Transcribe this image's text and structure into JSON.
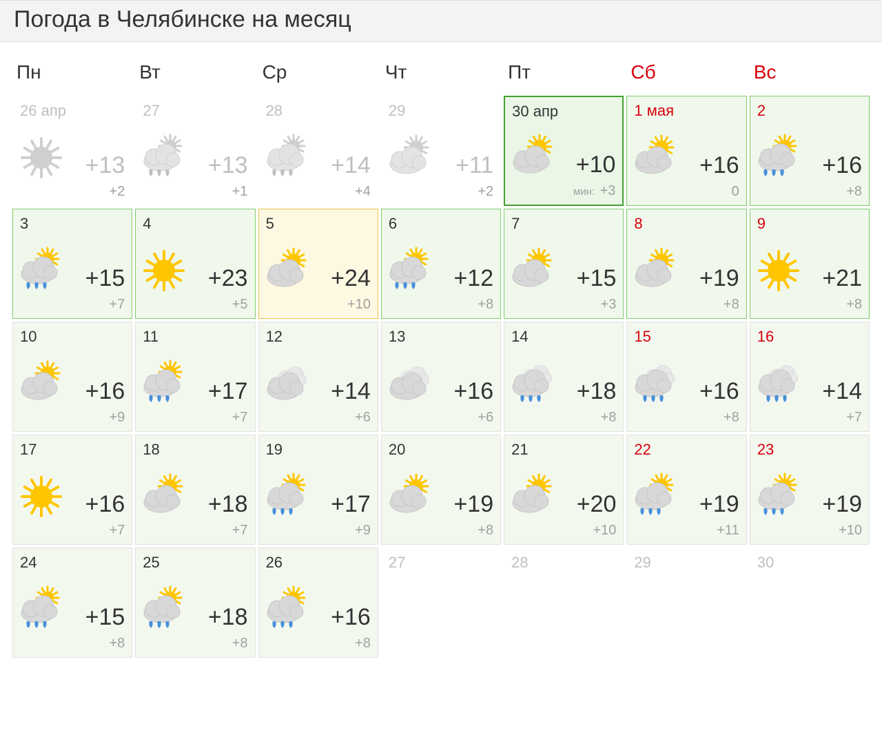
{
  "title": "Погода в Челябинске на месяц",
  "weekdays": [
    {
      "label": "Пн",
      "weekend": false
    },
    {
      "label": "Вт",
      "weekend": false
    },
    {
      "label": "Ср",
      "weekend": false
    },
    {
      "label": "Чт",
      "weekend": false
    },
    {
      "label": "Пт",
      "weekend": false
    },
    {
      "label": "Сб",
      "weekend": true
    },
    {
      "label": "Вс",
      "weekend": true
    }
  ],
  "min_label": "мин:",
  "colors": {
    "title_bg": "#f3f3f3",
    "border_past": "transparent",
    "text_past": "#bfbfbf",
    "text_normal": "#333333",
    "text_low": "#a0a0a0",
    "text_weekend": "#d8000c",
    "today_border": "#44a02e",
    "today_bg": "#eaf6e6",
    "near_border": "#7fcc6c",
    "near_bg": "#f0f8ec",
    "hot_border": "#e4c647",
    "hot_bg": "#fdf8e2",
    "future_border": "#e1e1e1",
    "future_bg": "#f3f8ef",
    "sun_fill": "#ffc600",
    "cloud_fill": "#d8d8d8",
    "cloud_stroke": "#c7c7c7",
    "rain_fill": "#4a90d9"
  },
  "days": [
    {
      "date": "26 апр",
      "weekend": false,
      "state": "past",
      "icon": "sun",
      "hi": "+13",
      "lo": "+2"
    },
    {
      "date": "27",
      "weekend": false,
      "state": "past",
      "icon": "sun-cloud-rain",
      "hi": "+13",
      "lo": "+1"
    },
    {
      "date": "28",
      "weekend": false,
      "state": "past",
      "icon": "sun-cloud-rain",
      "hi": "+14",
      "lo": "+4"
    },
    {
      "date": "29",
      "weekend": false,
      "state": "past",
      "icon": "sun-cloud",
      "hi": "+11",
      "lo": "+2"
    },
    {
      "date": "30 апр",
      "weekend": false,
      "state": "today",
      "icon": "sun-cloud",
      "hi": "+10",
      "lo": "+3",
      "lo_prefix": true
    },
    {
      "date": "1 мая",
      "weekend": true,
      "state": "near",
      "icon": "sun-cloud",
      "hi": "+16",
      "lo": "0"
    },
    {
      "date": "2",
      "weekend": true,
      "state": "near",
      "icon": "sun-cloud-rain",
      "hi": "+16",
      "lo": "+8"
    },
    {
      "date": "3",
      "weekend": false,
      "state": "near",
      "icon": "sun-cloud-rain",
      "hi": "+15",
      "lo": "+7"
    },
    {
      "date": "4",
      "weekend": false,
      "state": "near",
      "icon": "sun",
      "hi": "+23",
      "lo": "+5"
    },
    {
      "date": "5",
      "weekend": false,
      "state": "hot",
      "icon": "sun-cloud",
      "hi": "+24",
      "lo": "+10"
    },
    {
      "date": "6",
      "weekend": false,
      "state": "near",
      "icon": "sun-cloud-rain",
      "hi": "+12",
      "lo": "+8"
    },
    {
      "date": "7",
      "weekend": false,
      "state": "near",
      "icon": "sun-cloud",
      "hi": "+15",
      "lo": "+3"
    },
    {
      "date": "8",
      "weekend": true,
      "state": "near",
      "icon": "sun-cloud",
      "hi": "+19",
      "lo": "+8"
    },
    {
      "date": "9",
      "weekend": true,
      "state": "near",
      "icon": "sun",
      "hi": "+21",
      "lo": "+8"
    },
    {
      "date": "10",
      "weekend": false,
      "state": "future",
      "icon": "sun-cloud",
      "hi": "+16",
      "lo": "+9"
    },
    {
      "date": "11",
      "weekend": false,
      "state": "future",
      "icon": "sun-cloud-rain",
      "hi": "+17",
      "lo": "+7"
    },
    {
      "date": "12",
      "weekend": false,
      "state": "future",
      "icon": "cloudy",
      "hi": "+14",
      "lo": "+6"
    },
    {
      "date": "13",
      "weekend": false,
      "state": "future",
      "icon": "cloudy",
      "hi": "+16",
      "lo": "+6"
    },
    {
      "date": "14",
      "weekend": false,
      "state": "future",
      "icon": "cloud-rain",
      "hi": "+18",
      "lo": "+8"
    },
    {
      "date": "15",
      "weekend": true,
      "state": "future",
      "icon": "cloud-rain",
      "hi": "+16",
      "lo": "+8"
    },
    {
      "date": "16",
      "weekend": true,
      "state": "future",
      "icon": "cloud-rain",
      "hi": "+14",
      "lo": "+7"
    },
    {
      "date": "17",
      "weekend": false,
      "state": "future",
      "icon": "sun",
      "hi": "+16",
      "lo": "+7"
    },
    {
      "date": "18",
      "weekend": false,
      "state": "future",
      "icon": "sun-cloud",
      "hi": "+18",
      "lo": "+7"
    },
    {
      "date": "19",
      "weekend": false,
      "state": "future",
      "icon": "sun-cloud-rain",
      "hi": "+17",
      "lo": "+9"
    },
    {
      "date": "20",
      "weekend": false,
      "state": "future",
      "icon": "sun-cloud",
      "hi": "+19",
      "lo": "+8"
    },
    {
      "date": "21",
      "weekend": false,
      "state": "future",
      "icon": "sun-cloud",
      "hi": "+20",
      "lo": "+10"
    },
    {
      "date": "22",
      "weekend": true,
      "state": "future",
      "icon": "sun-cloud-rain",
      "hi": "+19",
      "lo": "+11"
    },
    {
      "date": "23",
      "weekend": true,
      "state": "future",
      "icon": "sun-cloud-rain",
      "hi": "+19",
      "lo": "+10"
    },
    {
      "date": "24",
      "weekend": false,
      "state": "future",
      "icon": "sun-cloud-rain",
      "hi": "+15",
      "lo": "+8"
    },
    {
      "date": "25",
      "weekend": false,
      "state": "future",
      "icon": "sun-cloud-rain",
      "hi": "+18",
      "lo": "+8"
    },
    {
      "date": "26",
      "weekend": false,
      "state": "future",
      "icon": "sun-cloud-rain",
      "hi": "+16",
      "lo": "+8"
    },
    {
      "date": "27",
      "weekend": false,
      "state": "empty"
    },
    {
      "date": "28",
      "weekend": false,
      "state": "empty"
    },
    {
      "date": "29",
      "weekend": false,
      "state": "empty"
    },
    {
      "date": "30",
      "weekend": false,
      "state": "empty"
    }
  ]
}
